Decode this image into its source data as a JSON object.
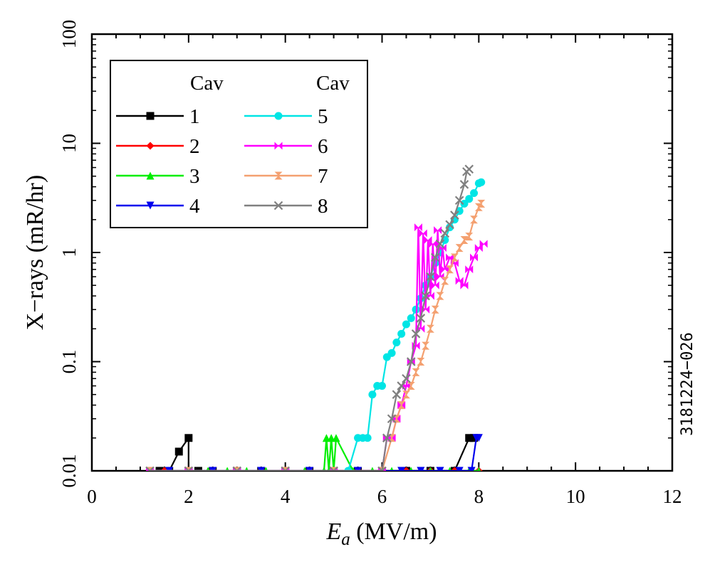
{
  "chart_data": {
    "type": "line",
    "xlabel_main": "E",
    "xlabel_sub": "a",
    "xlabel_unit": " (MV/m)",
    "ylabel": "X−rays (mR/hr)",
    "xlim": [
      0,
      12
    ],
    "ylim": [
      0.01,
      100
    ],
    "yscale": "log",
    "x_ticks": [
      "0",
      "2",
      "4",
      "6",
      "8",
      "10",
      "12"
    ],
    "y_ticks": [
      "0.01",
      "0.1",
      "1",
      "10",
      "100"
    ],
    "legend_heading_left": "Cav",
    "legend_heading_right": "Cav",
    "legend_placement": "top-left",
    "figure_id": "3181224−026",
    "series": [
      {
        "name": "1",
        "color": "#000000",
        "marker": "square",
        "x": [
          1.2,
          1.4,
          1.6,
          1.8,
          2.0,
          2.0,
          2.2,
          2.5,
          3.0,
          3.5,
          4.0,
          4.5,
          5.0,
          5.5,
          6.0,
          6.5,
          7.0,
          7.5,
          7.8,
          7.9
        ],
        "y": [
          0.01,
          0.01,
          0.01,
          0.015,
          0.02,
          0.01,
          0.01,
          0.01,
          0.01,
          0.01,
          0.01,
          0.01,
          0.01,
          0.01,
          0.01,
          0.01,
          0.01,
          0.01,
          0.02,
          0.02
        ]
      },
      {
        "name": "2",
        "color": "#ff0000",
        "marker": "diamond",
        "x": [
          1.2,
          1.5,
          2.0,
          2.5,
          3.0,
          3.5,
          4.0,
          4.5,
          5.0,
          5.5,
          6.0,
          6.5,
          7.0,
          7.5,
          8.0
        ],
        "y": [
          0.01,
          0.01,
          0.01,
          0.01,
          0.01,
          0.01,
          0.01,
          0.01,
          0.01,
          0.01,
          0.01,
          0.01,
          0.01,
          0.01,
          0.01
        ]
      },
      {
        "name": "3",
        "color": "#00ee00",
        "marker": "triangle-up",
        "x": [
          1.2,
          1.6,
          2.0,
          2.4,
          2.8,
          3.2,
          3.6,
          4.0,
          4.4,
          4.8,
          4.85,
          4.9,
          4.95,
          5.0,
          5.05,
          5.4,
          5.8,
          6.2,
          6.6,
          7.0,
          7.4,
          7.8,
          8.0
        ],
        "y": [
          0.01,
          0.01,
          0.01,
          0.01,
          0.01,
          0.01,
          0.01,
          0.01,
          0.01,
          0.01,
          0.02,
          0.01,
          0.02,
          0.01,
          0.02,
          0.01,
          0.01,
          0.01,
          0.01,
          0.01,
          0.01,
          0.01,
          0.01
        ]
      },
      {
        "name": "4",
        "color": "#0000ee",
        "marker": "triangle-down",
        "x": [
          1.2,
          1.6,
          2.0,
          2.5,
          3.0,
          3.5,
          4.0,
          4.5,
          5.0,
          5.5,
          6.0,
          6.4,
          6.8,
          7.2,
          7.6,
          7.85,
          7.95,
          8.0
        ],
        "y": [
          0.01,
          0.01,
          0.01,
          0.01,
          0.01,
          0.01,
          0.01,
          0.01,
          0.01,
          0.01,
          0.01,
          0.01,
          0.01,
          0.01,
          0.01,
          0.01,
          0.02,
          0.02
        ]
      },
      {
        "name": "5",
        "color": "#00e5e5",
        "marker": "circle",
        "x": [
          1.2,
          2.0,
          3.0,
          4.0,
          5.0,
          5.3,
          5.5,
          5.6,
          5.7,
          5.8,
          5.9,
          6.0,
          6.1,
          6.2,
          6.3,
          6.4,
          6.5,
          6.6,
          6.7,
          6.8,
          6.9,
          7.0,
          7.1,
          7.2,
          7.3,
          7.4,
          7.5,
          7.6,
          7.7,
          7.8,
          7.9,
          8.0,
          8.05
        ],
        "y": [
          0.01,
          0.01,
          0.01,
          0.01,
          0.01,
          0.01,
          0.02,
          0.02,
          0.02,
          0.05,
          0.06,
          0.06,
          0.11,
          0.12,
          0.15,
          0.18,
          0.22,
          0.25,
          0.3,
          0.38,
          0.5,
          0.6,
          0.8,
          1.0,
          1.3,
          1.7,
          2.0,
          2.4,
          2.8,
          3.1,
          3.5,
          4.3,
          4.4
        ]
      },
      {
        "name": "6",
        "color": "#ff00ff",
        "marker": "bowtie",
        "x": [
          1.2,
          2.0,
          3.0,
          4.0,
          5.0,
          6.0,
          6.1,
          6.2,
          6.3,
          6.4,
          6.5,
          6.6,
          6.7,
          6.75,
          6.8,
          6.85,
          6.9,
          6.95,
          7.0,
          7.05,
          7.1,
          7.15,
          7.2,
          7.25,
          7.3,
          7.4,
          7.5,
          7.6,
          7.7,
          7.8,
          7.9,
          8.0,
          8.1
        ],
        "y": [
          0.01,
          0.01,
          0.01,
          0.01,
          0.01,
          0.01,
          0.02,
          0.02,
          0.03,
          0.04,
          0.06,
          0.1,
          0.14,
          1.7,
          0.2,
          1.5,
          0.3,
          1.3,
          0.4,
          1.2,
          0.5,
          1.6,
          0.6,
          1.1,
          0.7,
          0.9,
          0.8,
          0.55,
          0.5,
          0.7,
          0.9,
          1.1,
          1.2
        ]
      },
      {
        "name": "7",
        "color": "#f4a070",
        "marker": "hourglass",
        "x": [
          1.2,
          2.0,
          3.0,
          4.0,
          5.0,
          6.0,
          6.2,
          6.3,
          6.4,
          6.5,
          6.6,
          6.7,
          6.8,
          6.9,
          7.0,
          7.1,
          7.2,
          7.3,
          7.4,
          7.5,
          7.6,
          7.7,
          7.8,
          7.9,
          8.0,
          8.05
        ],
        "y": [
          0.01,
          0.01,
          0.01,
          0.01,
          0.01,
          0.01,
          0.02,
          0.03,
          0.04,
          0.05,
          0.06,
          0.08,
          0.1,
          0.14,
          0.2,
          0.3,
          0.4,
          0.55,
          0.7,
          0.9,
          1.1,
          1.3,
          1.4,
          2.0,
          2.6,
          2.8
        ]
      },
      {
        "name": "8",
        "color": "#808080",
        "marker": "x",
        "x": [
          1.2,
          2.0,
          3.0,
          4.0,
          5.0,
          6.0,
          6.1,
          6.2,
          6.3,
          6.4,
          6.5,
          6.6,
          6.7,
          6.8,
          6.9,
          7.0,
          7.1,
          7.2,
          7.3,
          7.4,
          7.5,
          7.6,
          7.7,
          7.75,
          7.8
        ],
        "y": [
          0.01,
          0.01,
          0.01,
          0.01,
          0.01,
          0.01,
          0.02,
          0.03,
          0.05,
          0.06,
          0.07,
          0.1,
          0.18,
          0.25,
          0.4,
          0.6,
          0.9,
          1.2,
          1.5,
          1.8,
          2.2,
          3.0,
          4.2,
          5.5,
          5.8
        ]
      }
    ]
  }
}
